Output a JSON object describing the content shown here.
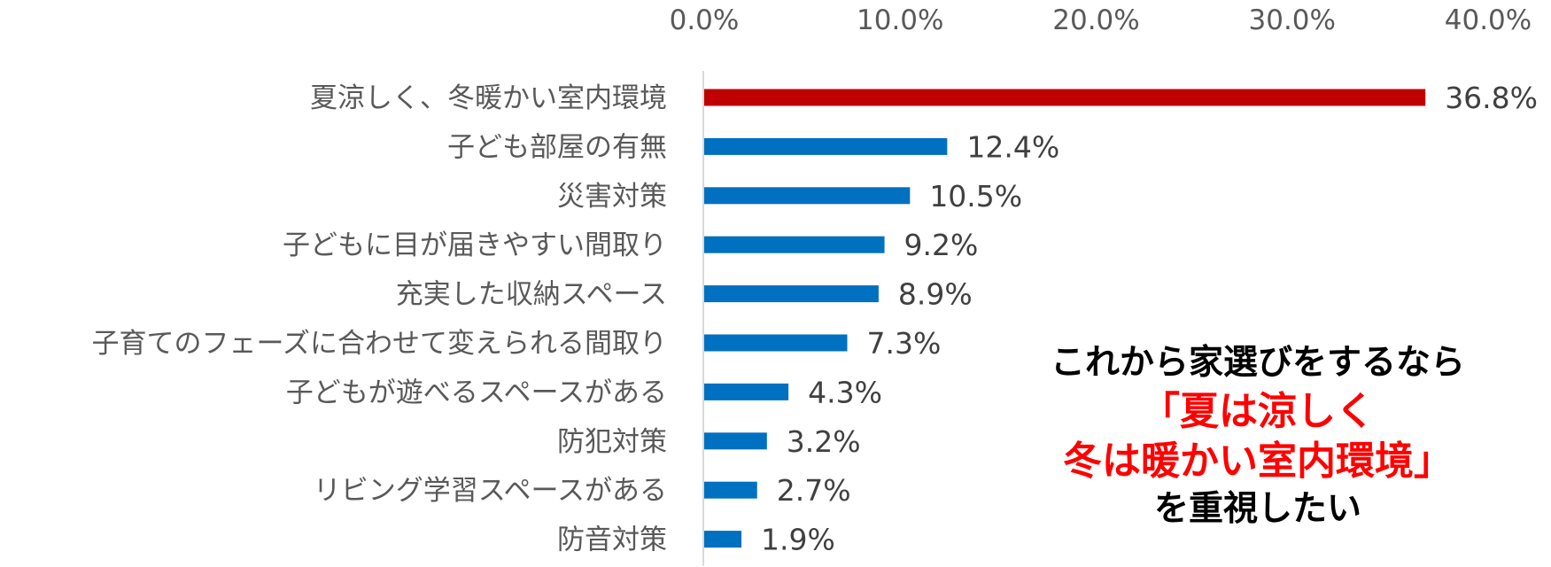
{
  "chart_data": {
    "type": "bar",
    "orientation": "horizontal",
    "categories": [
      "夏涼しく、冬暖かい室内環境",
      "子ども部屋の有無",
      "災害対策",
      "子どもに目が届きやすい間取り",
      "充実した収納スペース",
      "子育てのフェーズに合わせて変えられる間取り",
      "子どもが遊べるスペースがある",
      "防犯対策",
      "リビング学習スペースがある",
      "防音対策"
    ],
    "values": [
      36.8,
      12.4,
      10.5,
      9.2,
      8.9,
      7.3,
      4.3,
      3.2,
      2.7,
      1.9
    ],
    "data_labels": [
      "36.8%",
      "12.4%",
      "10.5%",
      "9.2%",
      "8.9%",
      "7.3%",
      "4.3%",
      "3.2%",
      "2.7%",
      "1.9%"
    ],
    "xlim": [
      0,
      40
    ],
    "x_ticks": [
      0,
      10,
      20,
      30,
      40
    ],
    "x_tick_labels": [
      "0.0%",
      "10.0%",
      "20.0%",
      "30.0%",
      "40.0%"
    ],
    "axis_position": "top",
    "grid": false,
    "colors": {
      "highlight": "#c00000",
      "default": "#0070c0",
      "axis": "#d9d9d9"
    },
    "highlight_index": 0
  },
  "annotation": {
    "line1": "これから家選びをするなら",
    "line2": "「夏は涼しく",
    "line3": "冬は暖かい室内環境」",
    "line4": "を重視したい"
  }
}
